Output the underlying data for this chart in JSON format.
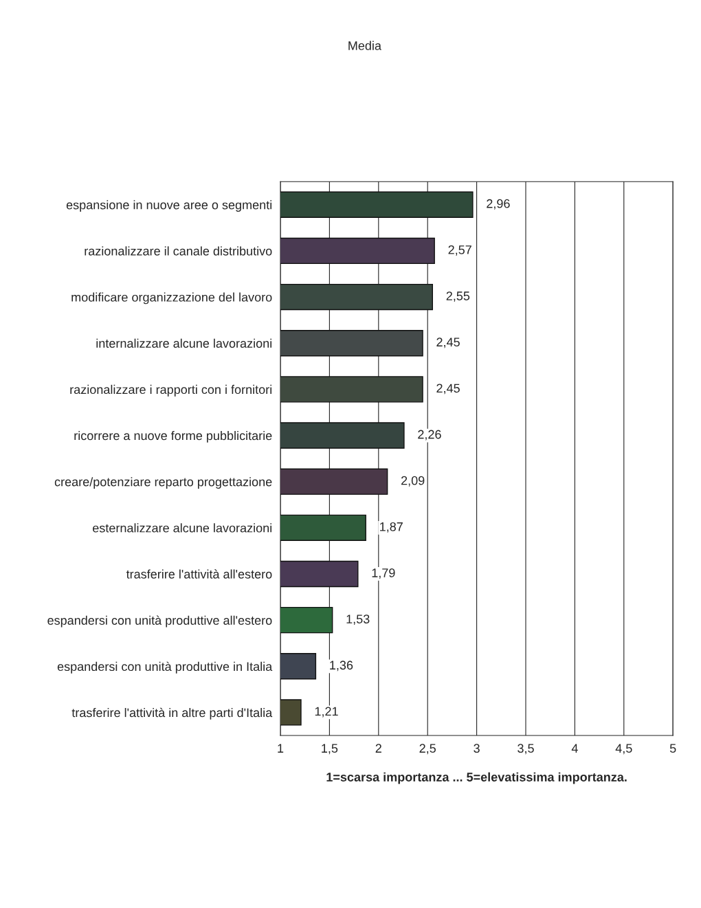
{
  "chart_data": {
    "type": "bar",
    "orientation": "horizontal",
    "title": "Media",
    "xlabel": "1=scarsa importanza ... 5=elevatissima importanza.",
    "categories": [
      "espansione in nuove aree o segmenti",
      "razionalizzare il canale distributivo",
      "modificare organizzazione del lavoro",
      "internalizzare alcune lavorazioni",
      "razionalizzare i rapporti con i fornitori",
      "ricorrere a nuove forme pubblicitarie",
      "creare/potenziare reparto progettazione",
      "esternalizzare alcune lavorazioni",
      "trasferire l'attività all'estero",
      "espandersi con unità produttive all'estero",
      "espandersi con unità produttive in Italia",
      "trasferire l'attività in altre parti d'Italia"
    ],
    "values": [
      2.96,
      2.57,
      2.55,
      2.45,
      2.45,
      2.26,
      2.09,
      1.87,
      1.79,
      1.53,
      1.36,
      1.21
    ],
    "value_labels": [
      "2,96",
      "2,57",
      "2,55",
      "2,45",
      "2,45",
      "2,26",
      "2,09",
      "1,87",
      "1,79",
      "1,53",
      "1,36",
      "1,21"
    ],
    "colors": [
      "#2f4a3a",
      "#4a3a52",
      "#3a4a42",
      "#444a4a",
      "#3f4a3f",
      "#364540",
      "#4a3848",
      "#2e5a3a",
      "#4a3a55",
      "#2d6a3c",
      "#3f4552",
      "#4a4a32"
    ],
    "xlim": [
      1,
      5
    ],
    "xticks": [
      1,
      {
        "value": 1.5,
        "label": "1,5"
      },
      2,
      {
        "value": 2.5,
        "label": "2,5"
      },
      3,
      {
        "value": 3.5,
        "label": "3,5"
      },
      4,
      {
        "value": 4.5,
        "label": "4,5"
      },
      5
    ],
    "grid": "x"
  }
}
